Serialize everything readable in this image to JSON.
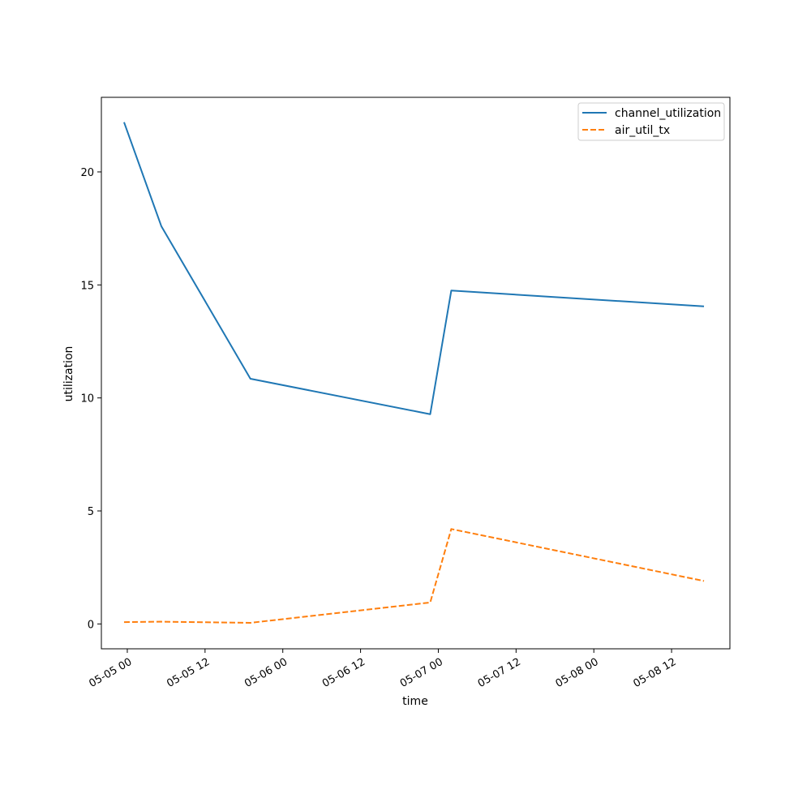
{
  "chart_data": {
    "type": "line",
    "title": "",
    "xlabel": "time",
    "ylabel": "utilization",
    "x_type": "datetime",
    "x_ticks": [
      {
        "t": "2024-05-05T00:00",
        "label": "05-05 00"
      },
      {
        "t": "2024-05-05T12:00",
        "label": "05-05 12"
      },
      {
        "t": "2024-05-06T00:00",
        "label": "05-06 00"
      },
      {
        "t": "2024-05-06T12:00",
        "label": "05-06 12"
      },
      {
        "t": "2024-05-07T00:00",
        "label": "05-07 00"
      },
      {
        "t": "2024-05-07T12:00",
        "label": "05-07 12"
      },
      {
        "t": "2024-05-08T00:00",
        "label": "05-08 00"
      },
      {
        "t": "2024-05-08T12:00",
        "label": "05-08 12"
      }
    ],
    "y_ticks": [
      0,
      5,
      10,
      15,
      20
    ],
    "xlim": [
      "2024-05-04T20:00",
      "2024-05-08T21:00"
    ],
    "ylim": [
      -1.1,
      23.3
    ],
    "grid": false,
    "legend": "top-right",
    "series": [
      {
        "name": "channel_utilization",
        "color": "#1f77b4",
        "style": "solid",
        "x": [
          "2024-05-04T23:30",
          "2024-05-05T05:15",
          "2024-05-05T19:00",
          "2024-05-06T22:45",
          "2024-05-07T02:00",
          "2024-05-08T17:00"
        ],
        "y": [
          22.2,
          17.6,
          10.85,
          9.28,
          14.75,
          14.05
        ]
      },
      {
        "name": "air_util_tx",
        "color": "#ff7f0e",
        "style": "dashed",
        "x": [
          "2024-05-04T23:30",
          "2024-05-05T05:15",
          "2024-05-05T19:00",
          "2024-05-06T22:45",
          "2024-05-07T02:00",
          "2024-05-08T17:00"
        ],
        "y": [
          0.08,
          0.1,
          0.05,
          0.95,
          4.2,
          1.9
        ]
      }
    ]
  }
}
